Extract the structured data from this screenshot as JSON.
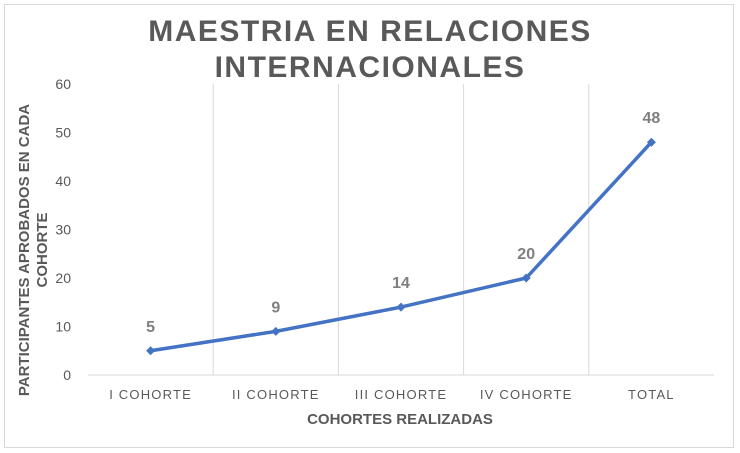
{
  "chart_data": {
    "type": "line",
    "title": [
      "MAESTRIA EN RELACIONES",
      "INTERNACIONALES"
    ],
    "categories": [
      "I COHORTE",
      "II COHORTE",
      "III COHORTE",
      "IV COHORTE",
      "TOTAL"
    ],
    "series": [
      {
        "values": [
          5,
          9,
          14,
          20,
          48
        ],
        "color": "#4472c4"
      }
    ],
    "data_labels": [
      "5",
      "9",
      "14",
      "20",
      "48"
    ],
    "xlabel": "COHORTES REALIZADAS",
    "ylabel": [
      "PARTICIPANTES APROBADOS EN CADA",
      "COHORTE"
    ],
    "ylim": [
      0,
      60
    ],
    "yticks": [
      0,
      10,
      20,
      30,
      40,
      50,
      60
    ],
    "grid": "vertical",
    "legend": "none",
    "colors": {
      "line": "#4472c4",
      "grid": "#d9d9d9",
      "text": "#595959",
      "data_label": "#7f7f7f"
    }
  }
}
